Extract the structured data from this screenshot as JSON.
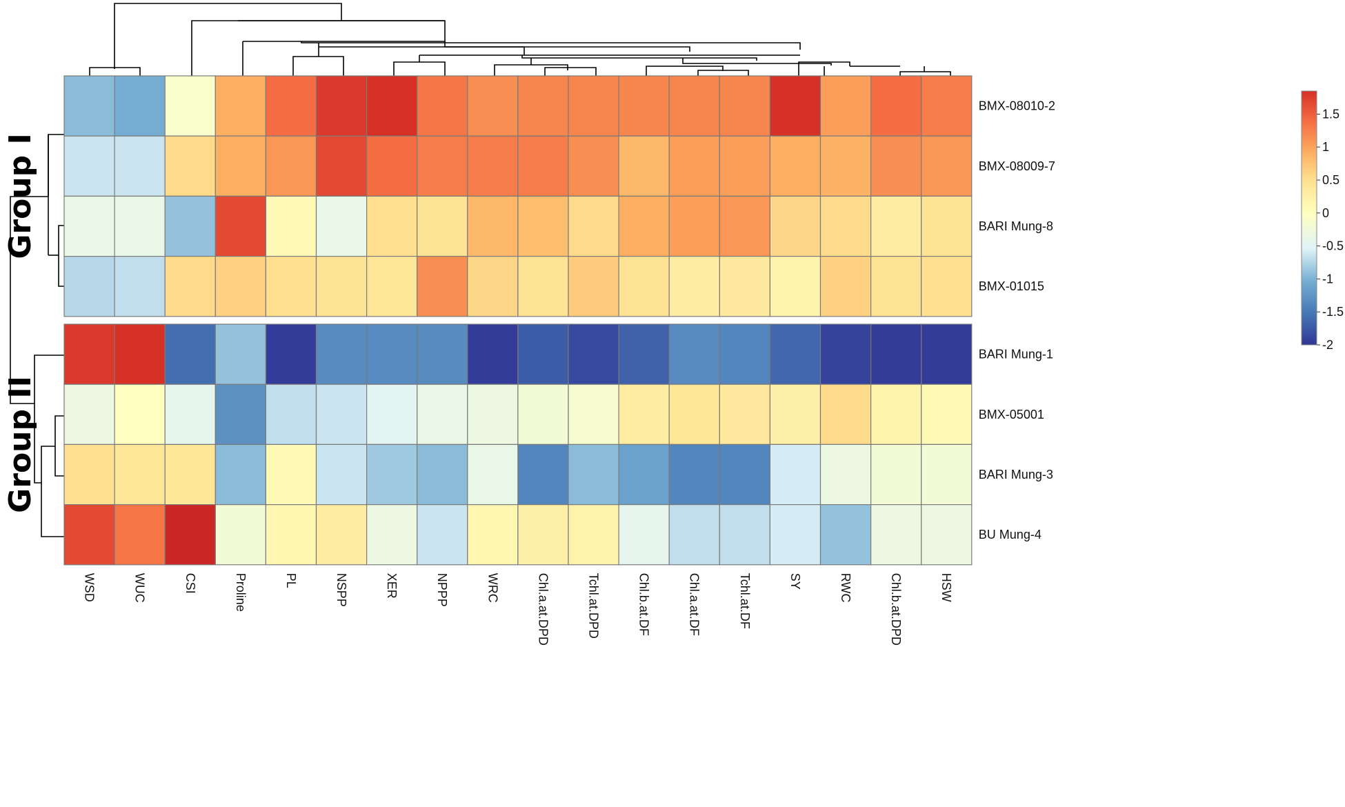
{
  "chart_data": {
    "type": "heatmap",
    "title": "",
    "columns": [
      "WSD",
      "WUC",
      "CSI",
      "Proline",
      "PL",
      "NSPP",
      "XER",
      "NPPP",
      "WRC",
      "Chl.a.at.DPD",
      "Tchl.at.DPD",
      "Chl.b.at.DF",
      "Chl.a.at.DF",
      "Tchl.at.DF",
      "SY",
      "RWC",
      "Chl.b.at.DPD",
      "HSW"
    ],
    "rows": [
      "BMX-08010-2",
      "BMX-08009-7",
      "BARI Mung-8",
      "BMX-01015",
      "BARI Mung-1",
      "BMX-05001",
      "BARI Mung-3",
      "BU Mung-4"
    ],
    "groups": [
      {
        "label": "Group I",
        "rows": [
          "BMX-08010-2",
          "BMX-08009-7",
          "BARI Mung-8",
          "BMX-01015"
        ]
      },
      {
        "label": "Group II",
        "rows": [
          "BARI Mung-1",
          "BMX-05001",
          "BARI Mung-3",
          "BU Mung-4"
        ]
      }
    ],
    "values": [
      [
        -0.9,
        -1.0,
        -0.1,
        1.0,
        1.4,
        1.7,
        1.75,
        1.35,
        1.2,
        1.25,
        1.25,
        1.25,
        1.25,
        1.25,
        1.75,
        1.1,
        1.4,
        1.3
      ],
      [
        -0.6,
        -0.6,
        0.55,
        1.0,
        1.15,
        1.6,
        1.4,
        1.3,
        1.3,
        1.3,
        1.2,
        0.9,
        1.1,
        1.1,
        1.0,
        0.95,
        1.2,
        1.15
      ],
      [
        -0.35,
        -0.35,
        -0.85,
        1.6,
        0.1,
        -0.35,
        0.5,
        0.45,
        0.9,
        0.85,
        0.55,
        1.0,
        1.1,
        1.15,
        0.6,
        0.55,
        0.3,
        0.45
      ],
      [
        -0.7,
        -0.65,
        0.55,
        0.65,
        0.5,
        0.45,
        0.4,
        1.2,
        0.6,
        0.45,
        0.7,
        0.45,
        0.3,
        0.35,
        0.2,
        0.65,
        0.45,
        0.5
      ],
      [
        1.7,
        1.75,
        -1.55,
        -0.85,
        -1.95,
        -1.3,
        -1.3,
        -1.3,
        -1.95,
        -1.7,
        -1.85,
        -1.65,
        -1.3,
        -1.35,
        -1.6,
        -1.9,
        -1.95,
        -1.95
      ],
      [
        -0.3,
        0.0,
        -0.4,
        -1.25,
        -0.65,
        -0.6,
        -0.45,
        -0.35,
        -0.3,
        -0.2,
        -0.15,
        0.3,
        0.4,
        0.35,
        0.25,
        0.55,
        0.2,
        0.1
      ],
      [
        0.5,
        0.4,
        0.4,
        -0.9,
        0.1,
        -0.6,
        -0.8,
        -0.9,
        -0.35,
        -1.35,
        -0.9,
        -1.1,
        -1.35,
        -1.35,
        -0.55,
        -0.3,
        -0.2,
        -0.2
      ],
      [
        1.6,
        1.35,
        1.8,
        -0.2,
        0.15,
        0.3,
        -0.3,
        -0.6,
        0.15,
        0.25,
        0.2,
        -0.4,
        -0.65,
        -0.65,
        -0.55,
        -0.85,
        -0.3,
        -0.3
      ]
    ],
    "colorbar": {
      "min": -2,
      "max": 1.85,
      "ticks": [
        "1.5",
        "1",
        "0.5",
        "0",
        "-0.5",
        "-1",
        "-1.5",
        "-2"
      ]
    },
    "colors": {
      "low": "#313695",
      "mid": "#ffffbf",
      "high": "#a50026"
    }
  }
}
